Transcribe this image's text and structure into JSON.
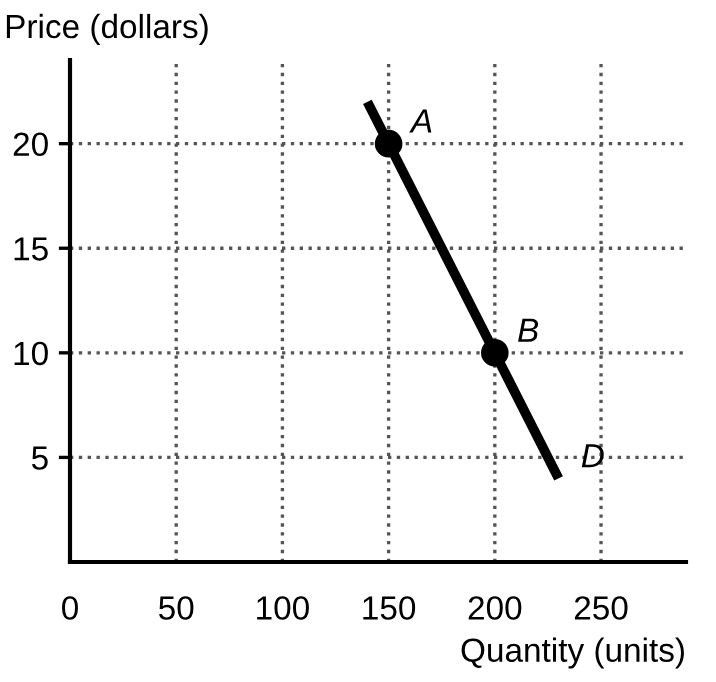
{
  "chart_data": {
    "type": "line",
    "xlabel": "Quantity (units)",
    "ylabel": "Price (dollars)",
    "x": [
      140,
      150,
      200,
      230
    ],
    "series": [
      {
        "color": "#000000",
        "values": [
          22,
          20,
          10,
          4
        ],
        "marker": "none"
      },
      {
        "type": "scatter",
        "color": "#000000",
        "x": [
          150,
          200
        ],
        "values": [
          20,
          10
        ],
        "marker": "circle"
      }
    ],
    "annotations": [
      {
        "text": "A",
        "x": 150,
        "y": 20
      },
      {
        "text": "B",
        "x": 200,
        "y": 10
      },
      {
        "text": "D",
        "x": 230,
        "y": 4
      }
    ],
    "xlim": [
      0,
      290
    ],
    "ylim": [
      0,
      24
    ],
    "xticks": [
      0,
      50,
      100,
      150,
      200,
      250
    ],
    "yticks": [
      5,
      10,
      15,
      20
    ],
    "grid": true,
    "line_style": "solid"
  }
}
